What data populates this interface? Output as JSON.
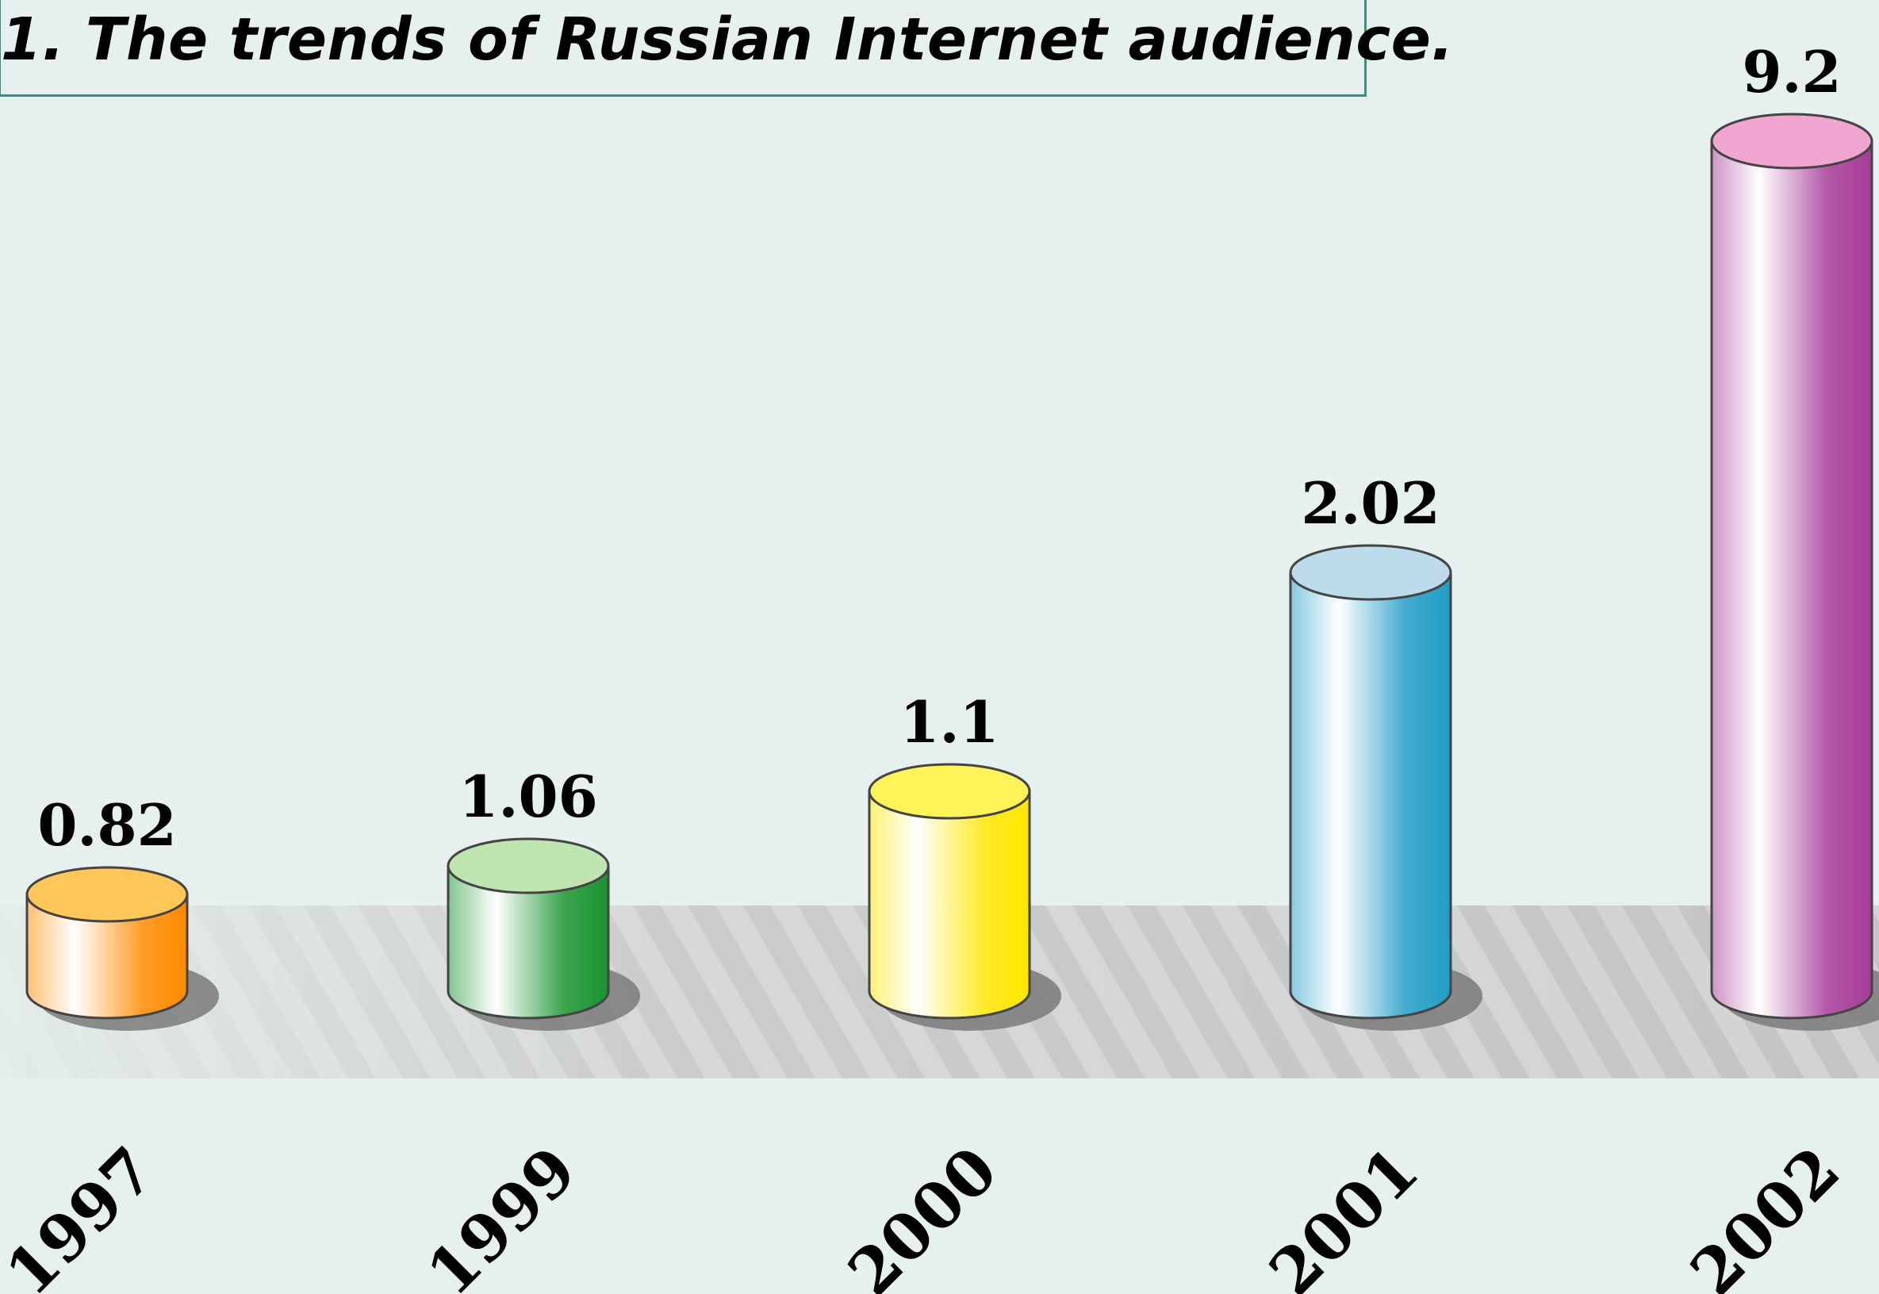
{
  "chart_data": {
    "type": "bar",
    "title": "1. The trends of Russian Internet audience.",
    "categories": [
      "1997",
      "1999",
      "2000",
      "2001",
      "2002"
    ],
    "values": [
      0.82,
      1.06,
      1.1,
      2.02,
      9.2
    ],
    "value_labels": [
      "0.82",
      "1.06",
      "1.1",
      "2.02",
      "9.2"
    ],
    "xlabel": "",
    "ylabel": "",
    "grid": false,
    "legend": "none",
    "bar_style": "3d-cylinder",
    "colors": [
      "#ff8a00",
      "#1a9430",
      "#ffe600",
      "#229cc6",
      "#a63b98"
    ],
    "cap_colors": [
      "#ffc65a",
      "#bfe5b0",
      "#fff35a",
      "#bcdcec",
      "#f0a6d0"
    ]
  }
}
